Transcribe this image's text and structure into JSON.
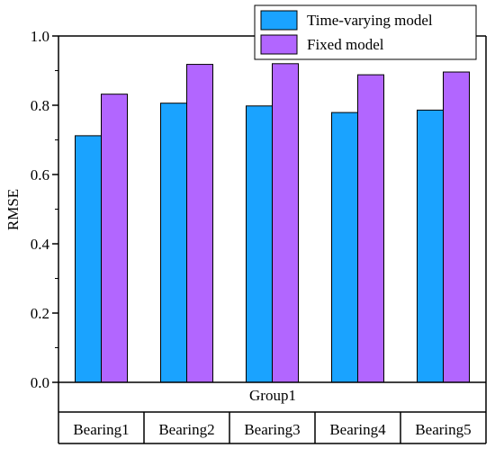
{
  "chart_data": {
    "type": "bar",
    "ylabel": "RMSE",
    "ylim": [
      0,
      1.0
    ],
    "yticks": [
      "0.0",
      "0.2",
      "0.4",
      "0.6",
      "0.8",
      "1.0"
    ],
    "categories": [
      "Bearing1",
      "Bearing2",
      "Bearing3",
      "Bearing4",
      "Bearing5"
    ],
    "group_label": "Group1",
    "legend_position": "top-right",
    "series": [
      {
        "name": "Time-varying model",
        "color": "#1aa3ff",
        "values": [
          0.712,
          0.806,
          0.798,
          0.779,
          0.786
        ]
      },
      {
        "name": "Fixed model",
        "color": "#b266ff",
        "values": [
          0.832,
          0.918,
          0.92,
          0.888,
          0.896
        ]
      }
    ]
  }
}
